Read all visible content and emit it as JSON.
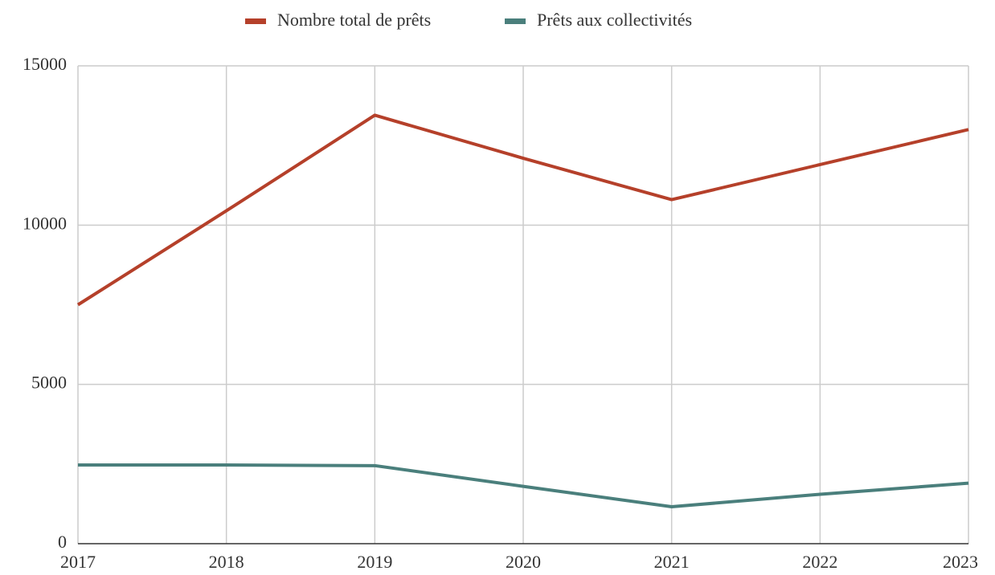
{
  "chart_data": {
    "type": "line",
    "categories": [
      "2017",
      "2018",
      "2019",
      "2020",
      "2021",
      "2022",
      "2023"
    ],
    "series": [
      {
        "name": "Nombre total de prêts",
        "color": "#b5402a",
        "values": [
          7500,
          10450,
          13450,
          12100,
          10800,
          11900,
          13000
        ]
      },
      {
        "name": "Prêts aux collectivités",
        "color": "#4a7f7c",
        "values": [
          2470,
          2470,
          2450,
          1800,
          1160,
          1550,
          1900
        ]
      }
    ],
    "ylim": [
      0,
      15000
    ],
    "yticks": [
      0,
      5000,
      10000,
      15000
    ],
    "grid": true,
    "legend": "top"
  }
}
